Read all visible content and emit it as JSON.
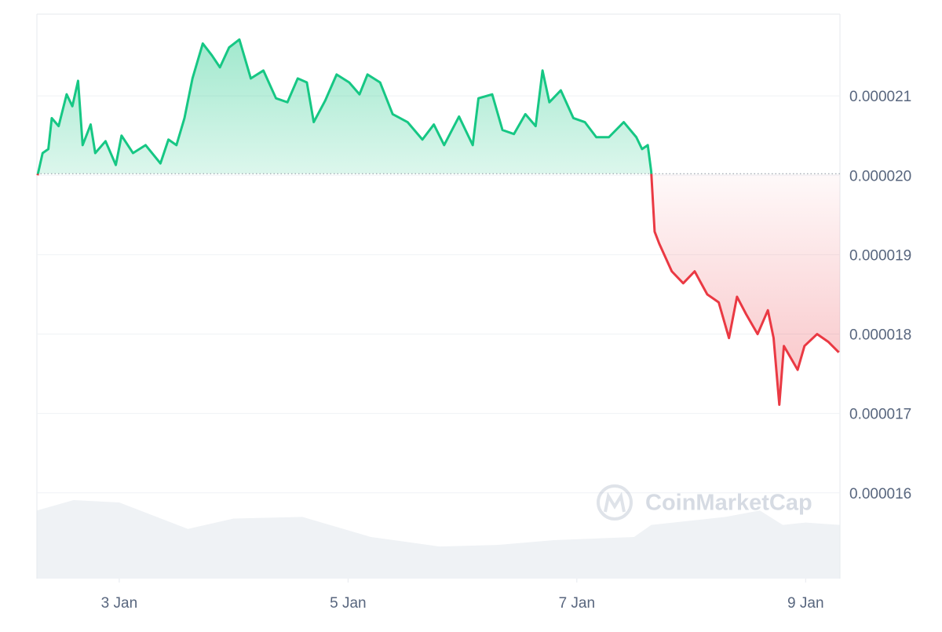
{
  "chart_data": {
    "type": "line",
    "x": [
      2.286,
      2.33,
      2.38,
      2.41,
      2.47,
      2.54,
      2.59,
      2.64,
      2.68,
      2.75,
      2.79,
      2.88,
      2.97,
      3.02,
      3.12,
      3.23,
      3.36,
      3.43,
      3.5,
      3.57,
      3.64,
      3.73,
      3.81,
      3.88,
      3.96,
      4.05,
      4.15,
      4.26,
      4.37,
      4.47,
      4.56,
      4.64,
      4.7,
      4.8,
      4.9,
      5.01,
      5.1,
      5.17,
      5.28,
      5.39,
      5.52,
      5.65,
      5.75,
      5.84,
      5.97,
      6.09,
      6.14,
      6.26,
      6.35,
      6.45,
      6.55,
      6.64,
      6.7,
      6.76,
      6.86,
      6.97,
      7.07,
      7.17,
      7.28,
      7.41,
      7.52,
      7.57,
      7.62,
      7.65,
      7.68,
      7.72,
      7.83,
      7.93,
      8.03,
      8.14,
      8.24,
      8.33,
      8.4,
      8.48,
      8.58,
      8.67,
      8.72,
      8.77,
      8.81,
      8.93,
      8.99,
      9.1,
      9.2,
      9.29
    ],
    "values": [
      2e-05,
      2.028e-05,
      2.033e-05,
      2.072e-05,
      2.062e-05,
      2.102e-05,
      2.087e-05,
      2.119e-05,
      2.038e-05,
      2.064e-05,
      2.028e-05,
      2.043e-05,
      2.013e-05,
      2.05e-05,
      2.028e-05,
      2.038e-05,
      2.015e-05,
      2.045e-05,
      2.038e-05,
      2.072e-05,
      2.122e-05,
      2.166e-05,
      2.151e-05,
      2.136e-05,
      2.161e-05,
      2.171e-05,
      2.122e-05,
      2.132e-05,
      2.097e-05,
      2.092e-05,
      2.122e-05,
      2.117e-05,
      2.067e-05,
      2.094e-05,
      2.127e-05,
      2.117e-05,
      2.102e-05,
      2.127e-05,
      2.117e-05,
      2.077e-05,
      2.067e-05,
      2.045e-05,
      2.064e-05,
      2.038e-05,
      2.074e-05,
      2.038e-05,
      2.097e-05,
      2.102e-05,
      2.057e-05,
      2.052e-05,
      2.077e-05,
      2.062e-05,
      2.132e-05,
      2.092e-05,
      2.107e-05,
      2.072e-05,
      2.067e-05,
      2.048e-05,
      2.048e-05,
      2.067e-05,
      2.048e-05,
      2.033e-05,
      2.038e-05,
      2.005e-05,
      1.929e-05,
      1.914e-05,
      1.879e-05,
      1.864e-05,
      1.879e-05,
      1.85e-05,
      1.84e-05,
      1.795e-05,
      1.847e-05,
      1.825e-05,
      1.8e-05,
      1.83e-05,
      1.795e-05,
      1.711e-05,
      1.785e-05,
      1.755e-05,
      1.785e-05,
      1.8e-05,
      1.79e-05,
      1.777e-05
    ],
    "baseline": 2.002e-05,
    "up_color": "#16c784",
    "down_color": "#ea3943",
    "xlim": [
      2.28,
      9.3
    ],
    "xticks": [
      {
        "value": 3,
        "label": "3 Jan"
      },
      {
        "value": 5,
        "label": "5 Jan"
      },
      {
        "value": 7,
        "label": "7 Jan"
      },
      {
        "value": 9,
        "label": "9 Jan"
      }
    ],
    "ylim": [
      1.492e-05,
      2.203e-05
    ],
    "yticks": [
      1.6e-05,
      1.7e-05,
      1.8e-05,
      1.9e-05,
      {
        "value": 2e-05,
        "label": "0.000020"
      },
      2.1e-05
    ],
    "grid": true,
    "volume": {
      "color": "#eff2f5",
      "x": [
        2.28,
        2.6,
        3.0,
        3.6,
        4.0,
        4.6,
        5.2,
        5.8,
        6.3,
        6.8,
        7.5,
        7.65,
        8.3,
        8.6,
        8.8,
        9.0,
        9.3
      ],
      "values": [
        85,
        98,
        95,
        62,
        75,
        77,
        52,
        40,
        42,
        48,
        52,
        67,
        77,
        85,
        67,
        70,
        67
      ]
    },
    "watermark": "CoinMarketCap"
  }
}
